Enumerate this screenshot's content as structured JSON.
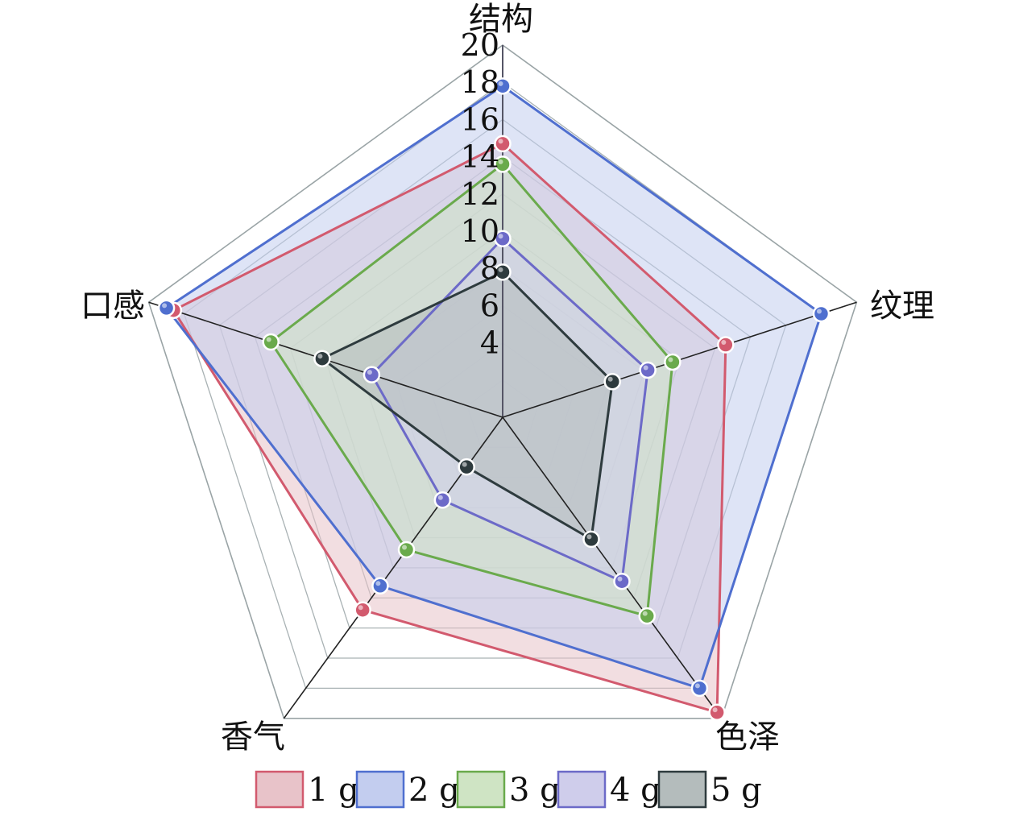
{
  "chart_data": {
    "type": "radar",
    "title": "",
    "axes": [
      "结构",
      "纹理",
      "色泽",
      "香气",
      "口感"
    ],
    "range": [
      0,
      20
    ],
    "ticks": [
      "4",
      "6",
      "8",
      "10",
      "12",
      "14",
      "16",
      "18",
      "20"
    ],
    "grid": true,
    "legend_position": "bottom",
    "series": [
      {
        "name": "1 g",
        "values": [
          14.7,
          12.6,
          19.6,
          12.8,
          18.6
        ],
        "color": "#d25a6e",
        "fill": "#e8c3c9"
      },
      {
        "name": "2 g",
        "values": [
          17.8,
          18.0,
          18.0,
          11.2,
          19.0
        ],
        "color": "#4f6fcf",
        "fill": "#c3cdef"
      },
      {
        "name": "3 g",
        "values": [
          13.6,
          9.6,
          13.2,
          8.8,
          13.1
        ],
        "color": "#6aaa4c",
        "fill": "#cfe4c4"
      },
      {
        "name": "4 g",
        "values": [
          9.6,
          8.2,
          10.9,
          5.5,
          7.4
        ],
        "color": "#6c6ac8",
        "fill": "#cfcdeb"
      },
      {
        "name": "5 g",
        "values": [
          7.8,
          6.2,
          8.1,
          3.3,
          10.2
        ],
        "color": "#2e3b3e",
        "fill": "#b4bcbc"
      }
    ]
  }
}
